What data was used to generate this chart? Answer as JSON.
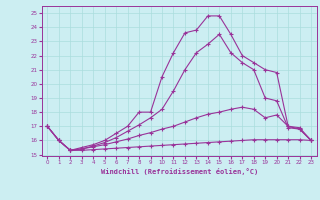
{
  "xlabel": "Windchill (Refroidissement éolien,°C)",
  "bg_color": "#cceef2",
  "grid_color": "#aadddd",
  "line_color": "#993399",
  "x": [
    0,
    1,
    2,
    3,
    4,
    5,
    6,
    7,
    8,
    9,
    10,
    11,
    12,
    13,
    14,
    15,
    16,
    17,
    18,
    19,
    20,
    21,
    22,
    23
  ],
  "lines": [
    [
      17.0,
      16.0,
      15.3,
      15.3,
      15.35,
      15.4,
      15.45,
      15.5,
      15.55,
      15.6,
      15.65,
      15.7,
      15.75,
      15.8,
      15.85,
      15.9,
      15.95,
      16.0,
      16.05,
      16.05,
      16.05,
      16.05,
      16.05,
      16.0
    ],
    [
      17.0,
      16.0,
      15.3,
      15.4,
      15.55,
      15.7,
      15.9,
      16.1,
      16.35,
      16.55,
      16.8,
      17.0,
      17.3,
      17.6,
      17.85,
      18.0,
      18.2,
      18.35,
      18.2,
      17.6,
      17.8,
      17.0,
      16.8,
      16.0
    ],
    [
      17.0,
      16.0,
      15.3,
      15.4,
      15.6,
      15.85,
      16.2,
      16.65,
      17.1,
      17.6,
      18.2,
      19.5,
      21.0,
      22.2,
      22.8,
      23.5,
      22.2,
      21.5,
      21.0,
      19.0,
      18.8,
      16.9,
      16.8,
      16.0
    ],
    [
      17.0,
      16.0,
      15.3,
      15.5,
      15.7,
      16.0,
      16.5,
      17.0,
      18.0,
      18.0,
      20.5,
      22.2,
      23.6,
      23.8,
      24.8,
      24.8,
      23.5,
      22.0,
      21.5,
      21.0,
      20.8,
      17.0,
      16.9,
      16.0
    ]
  ],
  "ylim": [
    14.9,
    25.5
  ],
  "yticks": [
    15,
    16,
    17,
    18,
    19,
    20,
    21,
    22,
    23,
    24,
    25
  ],
  "xlim": [
    -0.5,
    23.5
  ],
  "xticks": [
    0,
    1,
    2,
    3,
    4,
    5,
    6,
    7,
    8,
    9,
    10,
    11,
    12,
    13,
    14,
    15,
    16,
    17,
    18,
    19,
    20,
    21,
    22,
    23
  ]
}
